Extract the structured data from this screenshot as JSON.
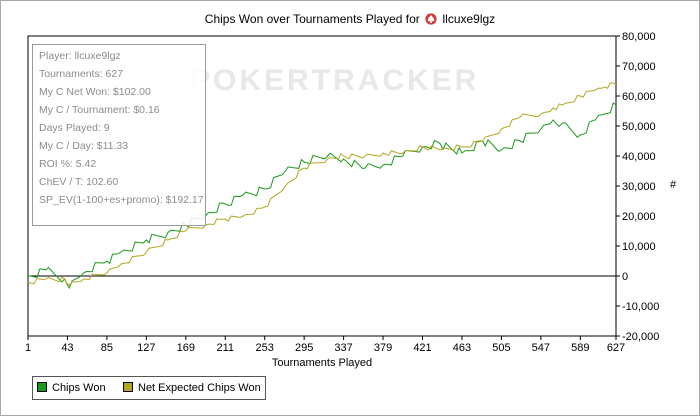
{
  "header": {
    "title": "Chips Won over Tournaments Played for",
    "player": "llcuxe9lgz"
  },
  "stats_box": {
    "lines": [
      "Player: llcuxe9lgz",
      "Tournaments: 627",
      "My C Net Won: $102.00",
      "My C / Tournament: $0.16",
      "Days Played: 9",
      "My C / Day: $11.33",
      "ROI %: 5.42",
      "ChEV / T: 102.60",
      "SP_EV(1-100+es+promo): $192.17"
    ]
  },
  "watermark": "POKERTRACKER",
  "legend": {
    "items": [
      {
        "label": "Chips Won",
        "color": "#1a9a1a"
      },
      {
        "label": "Net Expected Chips Won",
        "color": "#b5a51e"
      }
    ]
  },
  "chart_data": {
    "type": "line",
    "xlabel": "Tournaments Played",
    "ylabel": "#",
    "xlim": [
      1,
      627
    ],
    "ylim": [
      -20000,
      80000
    ],
    "x_ticks": [
      "1",
      "43",
      "85",
      "127",
      "169",
      "211",
      "253",
      "295",
      "337",
      "379",
      "421",
      "463",
      "505",
      "547",
      "589",
      "627"
    ],
    "y_ticks": [
      "-20,000",
      "-10,000",
      "0",
      "10,000",
      "20,000",
      "30,000",
      "40,000",
      "50,000",
      "60,000",
      "70,000",
      "80,000"
    ],
    "grid": false,
    "legend_position": "bottom-left",
    "x": [
      1,
      20,
      40,
      45,
      60,
      85,
      100,
      127,
      150,
      169,
      190,
      211,
      230,
      253,
      275,
      295,
      320,
      337,
      360,
      379,
      400,
      421,
      440,
      463,
      485,
      505,
      525,
      547,
      560,
      570,
      589,
      605,
      615,
      627
    ],
    "series": [
      {
        "name": "Chips Won",
        "color": "#1a9a1a",
        "values": [
          0,
          2000,
          -1000,
          -4000,
          1000,
          5000,
          8000,
          12000,
          14500,
          17000,
          20000,
          24000,
          27000,
          29000,
          35000,
          38000,
          40000,
          39000,
          36000,
          37000,
          40000,
          43000,
          44000,
          41000,
          45000,
          42000,
          45000,
          49000,
          52000,
          51000,
          47000,
          52000,
          54000,
          57000
        ]
      },
      {
        "name": "Net Expected Chips Won",
        "color": "#b5a51e",
        "values": [
          -2000,
          -1000,
          -1000,
          -3000,
          -1000,
          1000,
          4000,
          8000,
          12000,
          15000,
          17000,
          19000,
          20000,
          23000,
          30000,
          36000,
          39000,
          40000,
          40000,
          41000,
          41000,
          43000,
          42000,
          43000,
          45000,
          49000,
          53000,
          54000,
          56000,
          57000,
          60000,
          62000,
          63000,
          64000
        ]
      }
    ]
  }
}
